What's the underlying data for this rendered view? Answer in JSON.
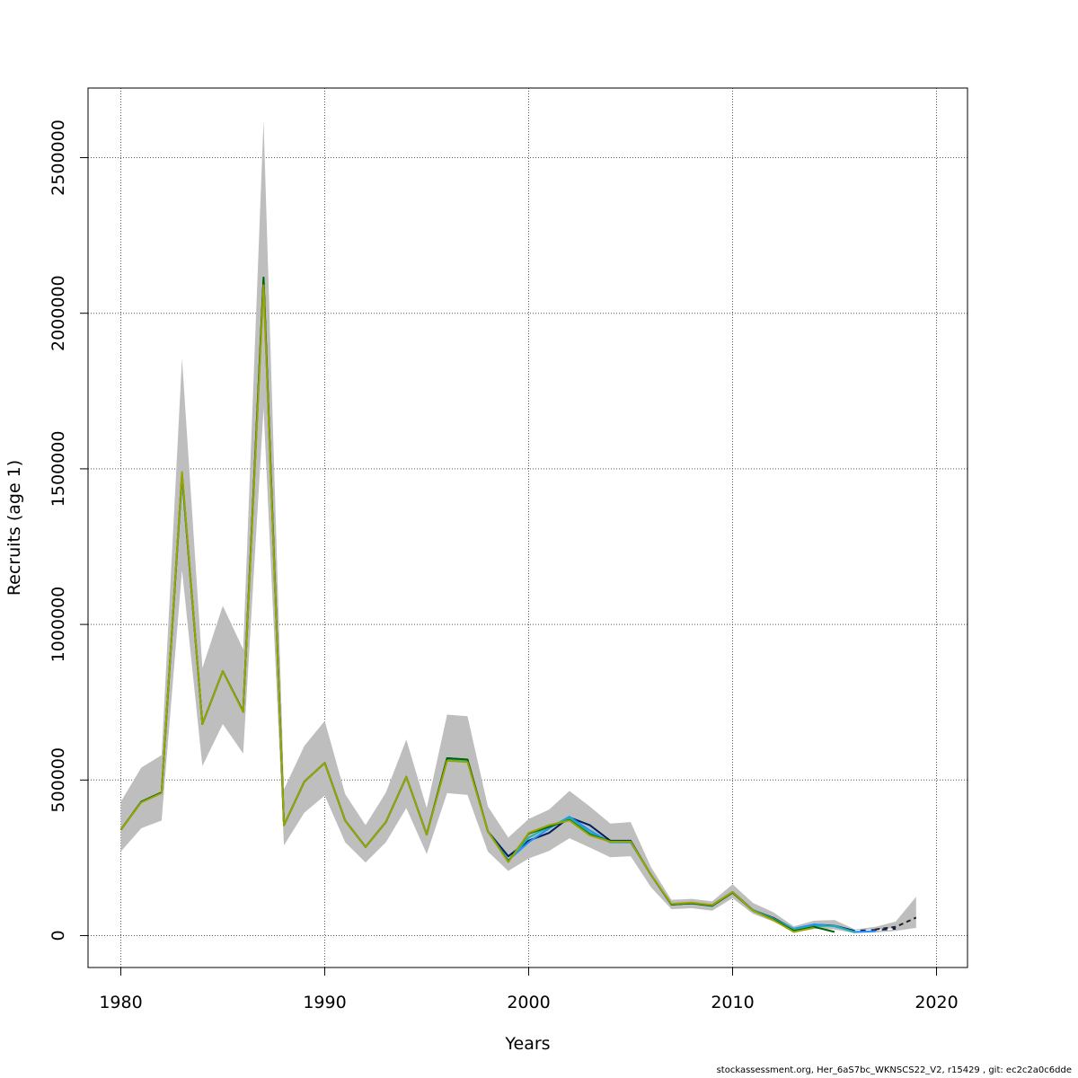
{
  "chart_data": {
    "type": "line",
    "xlabel": "Years",
    "ylabel": "Recruits (age 1)",
    "xlim": [
      1978.4,
      1021.5
    ],
    "ylim": [
      -105000,
      2720000
    ],
    "x_ticks": [
      1980,
      1990,
      2000,
      2010,
      2020
    ],
    "x_tick_labels": [
      "1980",
      "1990",
      "2000",
      "2010",
      "2020"
    ],
    "y_ticks": [
      0,
      500000,
      1000000,
      1500000,
      2000000,
      2500000
    ],
    "y_tick_labels": [
      "0",
      "500000",
      "1000000",
      "1500000",
      "2000000",
      "2500000"
    ],
    "grid": true,
    "footer": "stockassessment.org, Her_6aS7bc_WKNSCS22_V2, r15429 , git: ec2c2a0c6dde",
    "band": {
      "color": "#bebebe",
      "x": [
        1980,
        1981,
        1982,
        1983,
        1984,
        1985,
        1986,
        1987,
        1988,
        1989,
        1990,
        1991,
        1992,
        1993,
        1994,
        1995,
        1996,
        1997,
        1998,
        1999,
        2000,
        2001,
        2002,
        2003,
        2004,
        2005,
        2006,
        2007,
        2008,
        2009,
        2010,
        2011,
        2012,
        2013,
        2014,
        2015,
        2016,
        2017,
        2018,
        2019
      ],
      "upper": [
        430000,
        540000,
        580000,
        1855000,
        860000,
        1060000,
        920000,
        2620000,
        470000,
        610000,
        690000,
        455000,
        355000,
        460000,
        630000,
        410000,
        710000,
        705000,
        415000,
        315000,
        375000,
        405000,
        465000,
        415000,
        360000,
        365000,
        220000,
        115000,
        118000,
        110000,
        165000,
        105000,
        75000,
        30000,
        48000,
        50000,
        20000,
        28000,
        45000,
        125000
      ],
      "lower": [
        270000,
        345000,
        370000,
        1175000,
        545000,
        680000,
        585000,
        1695000,
        290000,
        395000,
        450000,
        300000,
        235000,
        300000,
        410000,
        262000,
        458000,
        452000,
        270000,
        208000,
        248000,
        272000,
        313000,
        283000,
        252000,
        255000,
        155000,
        85000,
        88000,
        80000,
        120000,
        70000,
        45000,
        12000,
        22000,
        20000,
        8000,
        10000,
        15000,
        25000
      ]
    },
    "series": [
      {
        "color": "#00205b",
        "x": [
          1980,
          1981,
          1982,
          1983,
          1984,
          1985,
          1986,
          1987,
          1988,
          1989,
          1990,
          1991,
          1992,
          1993,
          1994,
          1995,
          1996,
          1997,
          1998,
          1999,
          2000,
          2001,
          2002,
          2003,
          2004,
          2005,
          2006,
          2007,
          2008,
          2009,
          2010,
          2011,
          2012,
          2013,
          2014,
          2015,
          2016,
          2017,
          2018
        ],
        "values": [
          340000,
          430000,
          460000,
          1480000,
          680000,
          850000,
          720000,
          2110000,
          355000,
          495000,
          555000,
          370000,
          285000,
          365000,
          510000,
          325000,
          570000,
          565000,
          335000,
          255000,
          305000,
          330000,
          380000,
          355000,
          305000,
          305000,
          195000,
          100000,
          104000,
          98000,
          140000,
          82000,
          57000,
          21000,
          35000,
          32000,
          15000,
          18000,
          22000
        ]
      },
      {
        "color": "#ffffff",
        "dash": "6,6",
        "x": [
          2016,
          2017,
          2018
        ],
        "values": [
          15000,
          18000,
          22000
        ]
      },
      {
        "color": "#222222",
        "dash": "5,4",
        "x": [
          2017,
          2018,
          2019
        ],
        "values": [
          20000,
          28000,
          58000
        ]
      },
      {
        "color": "#1e90ff",
        "x": [
          1980,
          1981,
          1982,
          1983,
          1984,
          1985,
          1986,
          1987,
          1988,
          1989,
          1990,
          1991,
          1992,
          1993,
          1994,
          1995,
          1996,
          1997,
          1998,
          1999,
          2000,
          2001,
          2002,
          2003,
          2004,
          2005,
          2006,
          2007,
          2008,
          2009,
          2010,
          2011,
          2012,
          2013,
          2014,
          2015,
          2016,
          2017
        ],
        "values": [
          340000,
          430000,
          460000,
          1480000,
          680000,
          850000,
          720000,
          2100000,
          355000,
          495000,
          555000,
          370000,
          285000,
          365000,
          510000,
          325000,
          568000,
          562000,
          335000,
          242000,
          300000,
          345000,
          382000,
          338000,
          300000,
          300000,
          195000,
          100000,
          104000,
          96000,
          138000,
          82000,
          54000,
          22000,
          36000,
          30000,
          12000,
          14000
        ]
      },
      {
        "color": "#20b2aa",
        "x": [
          1980,
          1981,
          1982,
          1983,
          1984,
          1985,
          1986,
          1987,
          1988,
          1989,
          1990,
          1991,
          1992,
          1993,
          1994,
          1995,
          1996,
          1997,
          1998,
          1999,
          2000,
          2001,
          2002,
          2003,
          2004,
          2005,
          2006,
          2007,
          2008,
          2009,
          2010,
          2011,
          2012,
          2013,
          2014,
          2015,
          2016
        ],
        "values": [
          340000,
          430000,
          460000,
          1482000,
          680000,
          850000,
          720000,
          2100000,
          355000,
          495000,
          555000,
          370000,
          285000,
          365000,
          510000,
          325000,
          568000,
          562000,
          335000,
          240000,
          315000,
          350000,
          378000,
          330000,
          300000,
          302000,
          195000,
          100000,
          104000,
          95000,
          138000,
          82000,
          55000,
          20000,
          30000,
          32000,
          10000
        ]
      },
      {
        "color": "#006400",
        "x": [
          1980,
          1981,
          1982,
          1983,
          1984,
          1985,
          1986,
          1987,
          1988,
          1989,
          1990,
          1991,
          1992,
          1993,
          1994,
          1995,
          1996,
          1997,
          1998,
          1999,
          2000,
          2001,
          2002,
          2003,
          2004,
          2005,
          2006,
          2007,
          2008,
          2009,
          2010,
          2011,
          2012,
          2013,
          2014,
          2015
        ],
        "values": [
          340000,
          430000,
          460000,
          1485000,
          680000,
          850000,
          720000,
          2115000,
          355000,
          495000,
          555000,
          370000,
          285000,
          365000,
          510000,
          325000,
          570000,
          566000,
          335000,
          238000,
          328000,
          350000,
          372000,
          325000,
          303000,
          303000,
          195000,
          100000,
          104000,
          96000,
          138000,
          80000,
          52000,
          15000,
          28000,
          12000
        ]
      },
      {
        "color": "#9aa400",
        "x": [
          1980,
          1981,
          1982,
          1983,
          1984,
          1985,
          1986,
          1987,
          1988,
          1989,
          1990,
          1991,
          1992,
          1993,
          1994,
          1995,
          1996,
          1997,
          1998,
          1999,
          2000,
          2001,
          2002,
          2003,
          2004,
          2005,
          2006,
          2007,
          2008,
          2009,
          2010,
          2011,
          2012,
          2013,
          2014
        ],
        "values": [
          340000,
          428000,
          458000,
          1490000,
          680000,
          850000,
          718000,
          2090000,
          355000,
          495000,
          555000,
          370000,
          285000,
          365000,
          510000,
          325000,
          562000,
          558000,
          335000,
          236000,
          330000,
          355000,
          370000,
          322000,
          302000,
          302000,
          195000,
          102000,
          106000,
          98000,
          140000,
          80000,
          50000,
          12000,
          25000
        ]
      }
    ]
  }
}
